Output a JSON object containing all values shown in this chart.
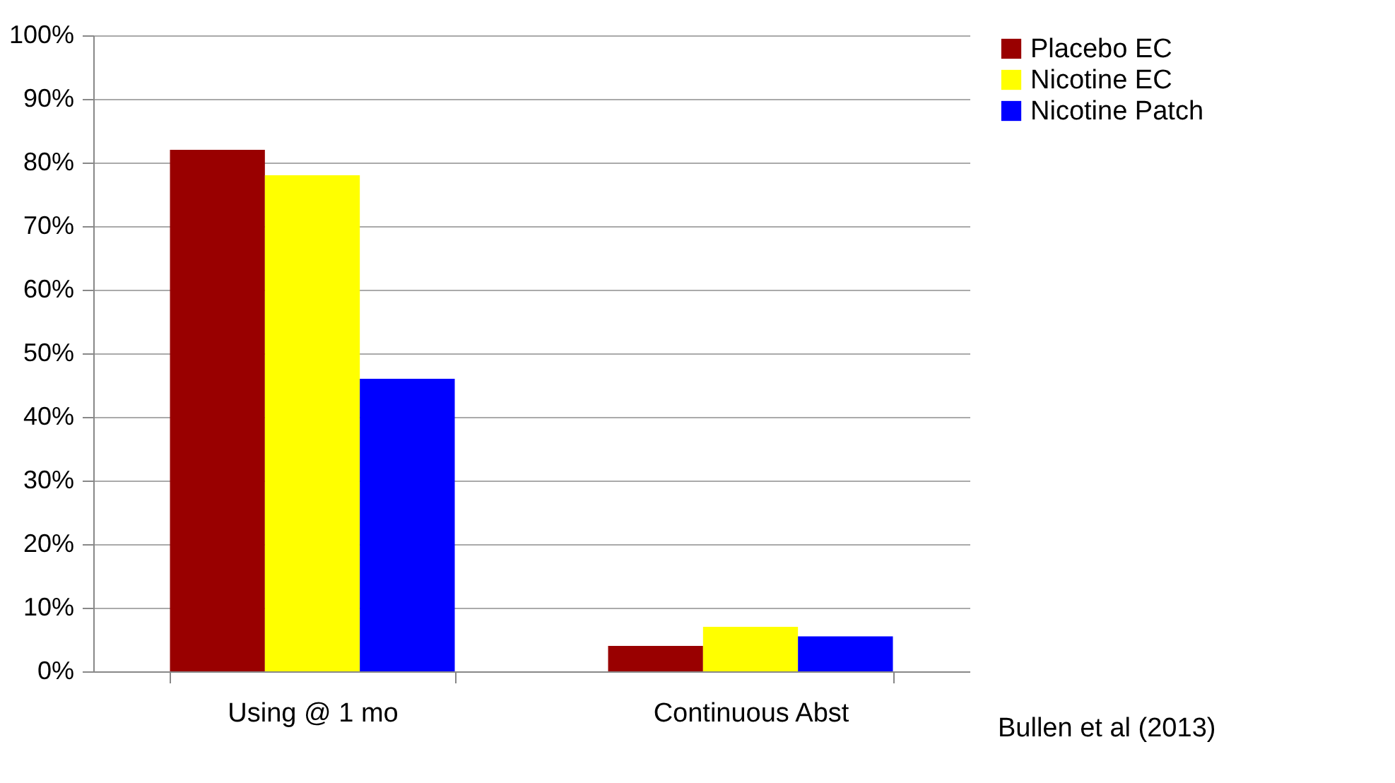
{
  "chart_data": {
    "type": "bar",
    "categories": [
      "Using @ 1 mo",
      "Continuous Abst"
    ],
    "series": [
      {
        "name": "Placebo EC",
        "color": "#990000",
        "values": [
          82,
          4
        ]
      },
      {
        "name": "Nicotine EC",
        "color": "#ffff00",
        "values": [
          78,
          7
        ]
      },
      {
        "name": "Nicotine Patch",
        "color": "#0000ff",
        "values": [
          46,
          5.5
        ]
      }
    ],
    "ylim": [
      0,
      100
    ],
    "yticks": [
      {
        "value": 0,
        "label": "0%"
      },
      {
        "value": 10,
        "label": "10%"
      },
      {
        "value": 20,
        "label": "20%"
      },
      {
        "value": 30,
        "label": "30%"
      },
      {
        "value": 40,
        "label": "40%"
      },
      {
        "value": 50,
        "label": "50%"
      },
      {
        "value": 60,
        "label": "60%"
      },
      {
        "value": 70,
        "label": "70%"
      },
      {
        "value": 80,
        "label": "80%"
      },
      {
        "value": 90,
        "label": "90%"
      },
      {
        "value": 100,
        "label": "100%"
      }
    ],
    "grid": "y",
    "legend": "right",
    "annotations": [
      "Bullen et al (2013)"
    ]
  }
}
